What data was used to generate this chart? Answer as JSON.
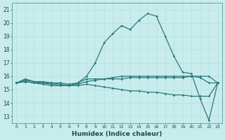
{
  "xlabel": "Humidex (Indice chaleur)",
  "bg_color": "#c8ecec",
  "line_color": "#2a7a7a",
  "grid_color": "#b8dede",
  "xlim": [
    -0.5,
    23.5
  ],
  "ylim": [
    12.5,
    21.5
  ],
  "yticks": [
    13,
    14,
    15,
    16,
    17,
    18,
    19,
    20,
    21
  ],
  "xticks": [
    0,
    1,
    2,
    3,
    4,
    5,
    6,
    7,
    8,
    9,
    10,
    11,
    12,
    13,
    14,
    15,
    16,
    17,
    18,
    19,
    20,
    21,
    22,
    23
  ],
  "series": [
    [
      15.5,
      15.8,
      15.6,
      15.6,
      15.5,
      15.5,
      15.4,
      15.5,
      16.0,
      17.0,
      18.5,
      19.2,
      19.8,
      19.5,
      20.2,
      20.7,
      20.5,
      19.0,
      17.5,
      16.3,
      16.2,
      14.3,
      12.7,
      15.5
    ],
    [
      15.5,
      15.7,
      15.6,
      15.5,
      15.5,
      15.4,
      15.3,
      15.5,
      15.8,
      15.8,
      15.8,
      15.9,
      16.0,
      16.0,
      16.0,
      16.0,
      16.0,
      16.0,
      16.0,
      16.0,
      16.0,
      16.0,
      16.0,
      15.5
    ],
    [
      15.5,
      15.6,
      15.5,
      15.5,
      15.4,
      15.3,
      15.3,
      15.3,
      15.4,
      15.3,
      15.2,
      15.1,
      15.0,
      14.9,
      14.9,
      14.8,
      14.8,
      14.7,
      14.6,
      14.6,
      14.5,
      14.5,
      14.5,
      15.5
    ],
    [
      15.5,
      15.6,
      15.5,
      15.4,
      15.3,
      15.3,
      15.3,
      15.4,
      15.6,
      15.7,
      15.8,
      15.8,
      15.8,
      15.9,
      15.9,
      15.9,
      15.9,
      15.9,
      15.9,
      15.9,
      16.0,
      15.9,
      15.5,
      15.5
    ]
  ]
}
